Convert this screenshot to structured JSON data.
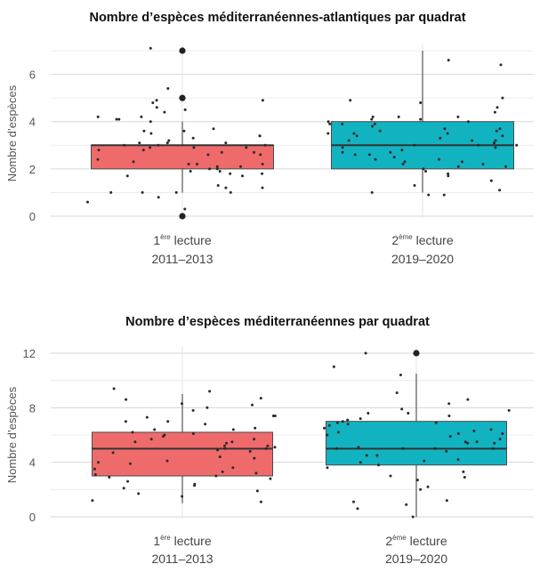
{
  "chart_data": [
    {
      "type": "boxplot",
      "title": "Nombre d’espèces méditerranéennes-atlantiques par quadrat",
      "ylabel": "Nombre d’espèces",
      "ylim": [
        0,
        7
      ],
      "yticks": [
        0,
        2,
        4,
        6
      ],
      "grid": true,
      "categories": [
        {
          "ordinal": "1",
          "ordinal_sup": "ère",
          "label": "lecture",
          "period": "2011–2013"
        },
        {
          "ordinal": "2",
          "ordinal_sup": "ème",
          "label": "lecture",
          "period": "2019–2020"
        }
      ],
      "boxes": [
        {
          "min": 1,
          "q1": 2,
          "median": 3,
          "q3": 3,
          "max": 4,
          "outliers": [
            0,
            5,
            7
          ],
          "color": "#ef6b6b"
        },
        {
          "min": 1,
          "q1": 2,
          "median": 3,
          "q3": 4,
          "max": 7,
          "outliers": [],
          "color": "#12b3c1"
        }
      ],
      "points": [
        [
          0.6,
          1.8,
          1.0,
          1.7,
          1.2,
          2.2,
          2.9,
          1.8,
          1.0,
          1.9,
          2.1,
          2.6,
          1.7,
          2.3,
          0.8,
          2.7,
          1.9,
          2.4,
          2.0,
          1.0,
          1.2,
          2.1,
          1.0,
          0.3,
          2.2,
          1.3,
          2.0,
          2.2,
          2.6,
          3.4,
          3.0,
          3.5,
          2.9,
          4.0,
          4.1,
          3.6,
          3.2,
          2.8,
          3.0,
          3.3,
          3.1,
          2.7,
          2.8,
          3.1,
          2.9,
          3.6,
          3.1,
          3.0,
          3.4,
          4.2,
          4.6,
          4.8,
          3.7,
          4.9,
          4.5,
          4.1,
          4.4,
          4.2,
          4.9,
          5.4,
          7.1
        ],
        [
          0.9,
          0.9,
          1.0,
          1.1,
          1.3,
          1.5,
          1.7,
          1.8,
          1.9,
          2.0,
          2.1,
          2.1,
          2.2,
          2.3,
          2.4,
          2.4,
          2.5,
          2.7,
          2.8,
          3.0,
          3.1,
          3.2,
          2.2,
          2.9,
          2.3,
          3.4,
          2.7,
          3.0,
          2.6,
          3.5,
          2.6,
          3.0,
          3.3,
          3.5,
          3.4,
          2.9,
          3.6,
          3.2,
          3.7,
          3.2,
          3.6,
          3.9,
          3.9,
          3.9,
          3.5,
          3.7,
          4.1,
          4.0,
          4.1,
          4.2,
          4.2,
          4.4,
          3.8,
          4.2,
          4.6,
          4.9,
          4.8,
          4.0,
          6.4,
          6.6,
          5.0
        ]
      ]
    },
    {
      "type": "boxplot",
      "title": "Nombre d’espèces méditerranéennes par quadrat",
      "ylabel": "Nombre d’espèces",
      "ylim": [
        0,
        12
      ],
      "yticks": [
        0,
        4,
        8,
        12
      ],
      "grid": true,
      "categories": [
        {
          "ordinal": "1",
          "ordinal_sup": "ère",
          "label": "lecture",
          "period": "2011–2013"
        },
        {
          "ordinal": "2",
          "ordinal_sup": "ème",
          "label": "lecture",
          "period": "2019–2020"
        }
      ],
      "boxes": [
        {
          "min": 1,
          "q1": 3,
          "median": 5,
          "q3": 6.2,
          "max": 9,
          "outliers": [],
          "color": "#ef6b6b"
        },
        {
          "min": 0,
          "q1": 3.8,
          "median": 5,
          "q3": 7,
          "max": 10.5,
          "outliers": [
            12
          ],
          "color": "#12b3c1"
        }
      ],
      "points": [
        [
          1.2,
          1.9,
          2.1,
          2.8,
          2.4,
          3.0,
          1.7,
          3.9,
          2.6,
          2.3,
          4.0,
          3.6,
          4.4,
          3.3,
          1.5,
          3.5,
          2.9,
          1.1,
          4.7,
          4.9,
          3.2,
          3.1,
          4.3,
          4.8,
          5.1,
          5.2,
          5.5,
          4.1,
          5.5,
          5.0,
          5.7,
          5.9,
          6.2,
          6.0,
          6.5,
          6.1,
          6.4,
          6.8,
          5.4,
          5.7,
          5.2,
          7.0,
          7.0,
          7.3,
          7.4,
          7.4,
          8.0,
          8.2,
          8.7,
          8.6,
          9.2,
          9.4,
          8.3,
          7.8,
          6.4,
          5.0
        ],
        [
          0.0,
          0.6,
          0.9,
          1.1,
          1.2,
          2.0,
          2.2,
          2.7,
          2.9,
          3.0,
          3.3,
          3.6,
          3.8,
          4.1,
          4.0,
          4.2,
          4.5,
          4.5,
          4.8,
          5.0,
          5.0,
          5.4,
          5.5,
          5.4,
          5.0,
          5.9,
          6.1,
          6.0,
          5.5,
          5.0,
          6.1,
          6.4,
          6.7,
          6.8,
          6.9,
          7.0,
          6.2,
          6.5,
          6.9,
          5.7,
          5.1,
          7.1,
          7.2,
          7.4,
          7.6,
          7.6,
          7.8,
          7.9,
          8.3,
          8.6,
          9.1,
          10.4,
          11.0,
          12.0,
          6.3
        ]
      ]
    }
  ]
}
